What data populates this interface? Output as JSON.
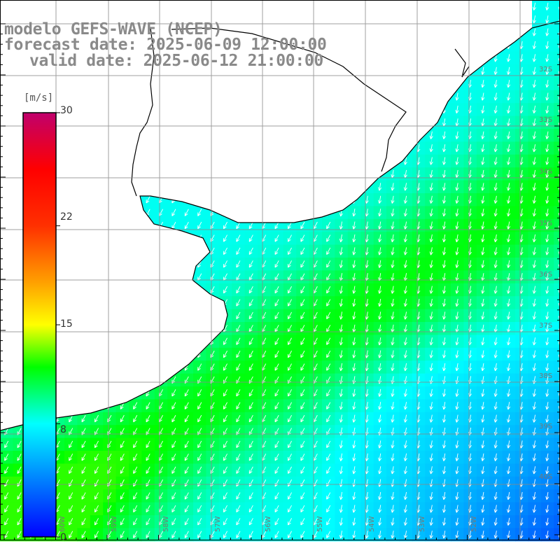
{
  "title": {
    "model": "modelo GEFS-WAVE (NCEP)",
    "forecast": "forecast date: 2025-06-09 12:00:00",
    "valid": "valid date: 2025-06-12 21:00:00"
  },
  "colorbar": {
    "unit": "[m/s]",
    "ticks": [
      {
        "value": 30,
        "label": "30"
      },
      {
        "value": 22,
        "label": "22"
      },
      {
        "value": 15,
        "label": "15"
      },
      {
        "value": 8,
        "label": "8"
      },
      {
        "value": 0,
        "label": "0"
      }
    ],
    "min": 0,
    "max": 30,
    "stops": [
      {
        "value": 0,
        "color": "#0000ff"
      },
      {
        "value": 4,
        "color": "#0080ff"
      },
      {
        "value": 8,
        "color": "#00ffff"
      },
      {
        "value": 12,
        "color": "#00ff00"
      },
      {
        "value": 15,
        "color": "#ffff00"
      },
      {
        "value": 18,
        "color": "#ffa000"
      },
      {
        "value": 22,
        "color": "#ff3000"
      },
      {
        "value": 26,
        "color": "#ff0000"
      },
      {
        "value": 30,
        "color": "#c0006c"
      }
    ]
  },
  "lat_labels": [
    "32S",
    "33S",
    "34S",
    "35S",
    "36S",
    "37S",
    "38S",
    "39S",
    "40S"
  ],
  "lon_labels": [
    "60W",
    "59W",
    "58W",
    "57W",
    "56W",
    "55W",
    "54W",
    "53W",
    "52W"
  ],
  "colors": {
    "land": "#ffffff",
    "grid": "#888888",
    "coast": "#000000",
    "arrow": "#ffffff"
  }
}
